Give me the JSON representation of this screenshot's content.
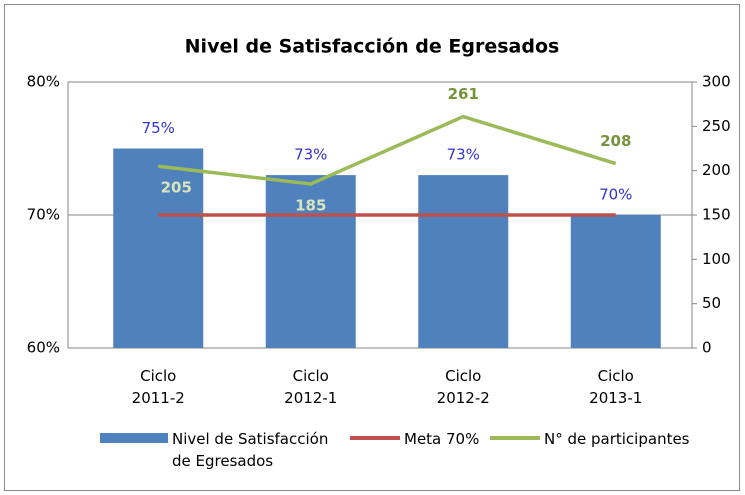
{
  "chart_data": {
    "type": "bar",
    "title": "Nivel de Satisfacción de Egresados",
    "categories": [
      "Ciclo 2011-2",
      "Ciclo 2012-1",
      "Ciclo 2012-2",
      "Ciclo 2013-1"
    ],
    "series": [
      {
        "name": "Nivel de Satisfacción de Egresados",
        "type": "bar",
        "color": "#4f81bd",
        "values": [
          75,
          73,
          73,
          70
        ],
        "value_labels": [
          "75%",
          "73%",
          "73%",
          "70%"
        ]
      },
      {
        "name": "Meta 70%",
        "type": "line",
        "color": "#c0504d",
        "values": [
          70,
          70,
          70,
          70
        ]
      },
      {
        "name": "N° de participantes",
        "type": "line",
        "axis": "y2",
        "color": "#9bbb59",
        "values": [
          205,
          185,
          261,
          208
        ]
      }
    ],
    "ylim": [
      60,
      80
    ],
    "yticks": [
      {
        "value": 60,
        "label": "60%"
      },
      {
        "value": 70,
        "label": "70%"
      },
      {
        "value": 80,
        "label": "80%"
      }
    ],
    "y2lim": [
      0,
      300
    ],
    "y2ticks": [
      0,
      50,
      100,
      150,
      200,
      250,
      300
    ],
    "grid": true,
    "legend": "bottom"
  }
}
